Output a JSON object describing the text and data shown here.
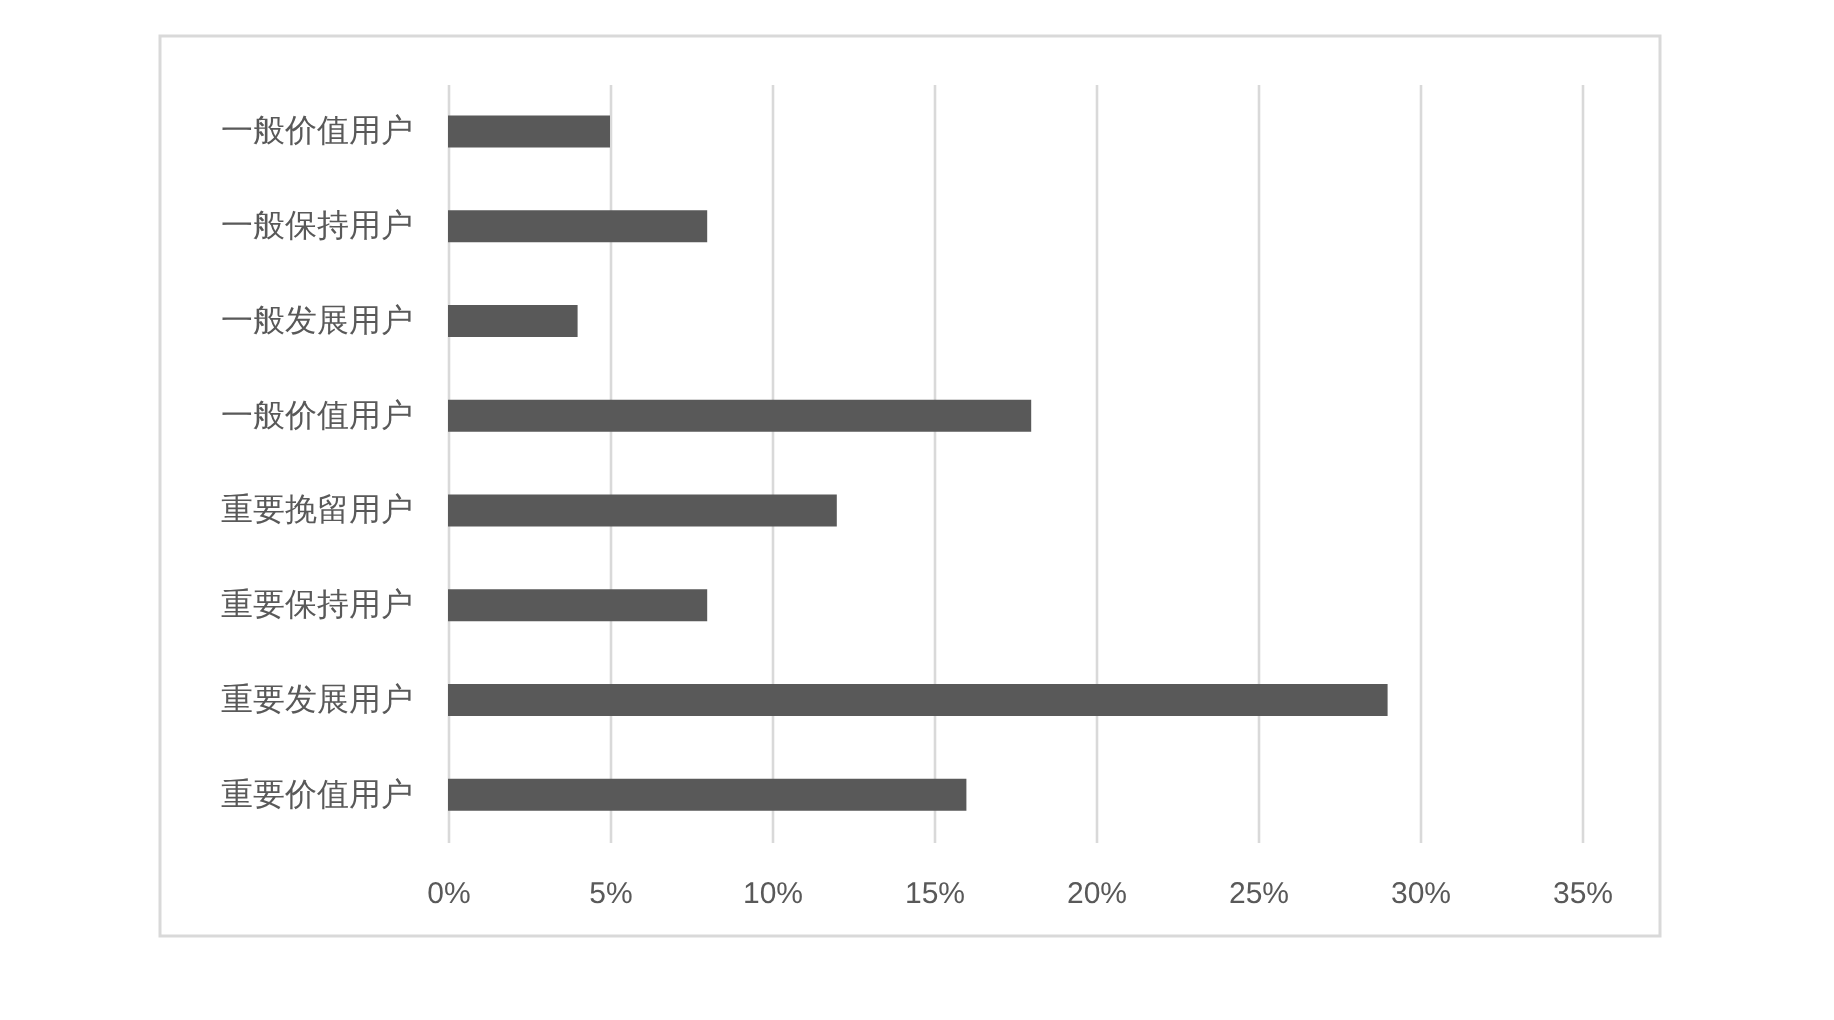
{
  "chart_data": {
    "type": "bar",
    "orientation": "horizontal",
    "categories": [
      "一般价值用户",
      "一般保持用户",
      "一般发展用户",
      "一般价值用户",
      "重要挽留用户",
      "重要保持用户",
      "重要发展用户",
      "重要价值用户"
    ],
    "values": [
      5,
      8,
      4,
      18,
      12,
      8,
      29,
      16
    ],
    "color": "#595959",
    "xlim": [
      0,
      35
    ],
    "xticks": [
      {
        "value": 0,
        "label": "0%"
      },
      {
        "value": 5,
        "label": "5%"
      },
      {
        "value": 10,
        "label": "10%"
      },
      {
        "value": 15,
        "label": "15%"
      },
      {
        "value": 20,
        "label": "20%"
      },
      {
        "value": 25,
        "label": "25%"
      },
      {
        "value": 30,
        "label": "30%"
      },
      {
        "value": 35,
        "label": "35%"
      }
    ],
    "grid": "x"
  }
}
